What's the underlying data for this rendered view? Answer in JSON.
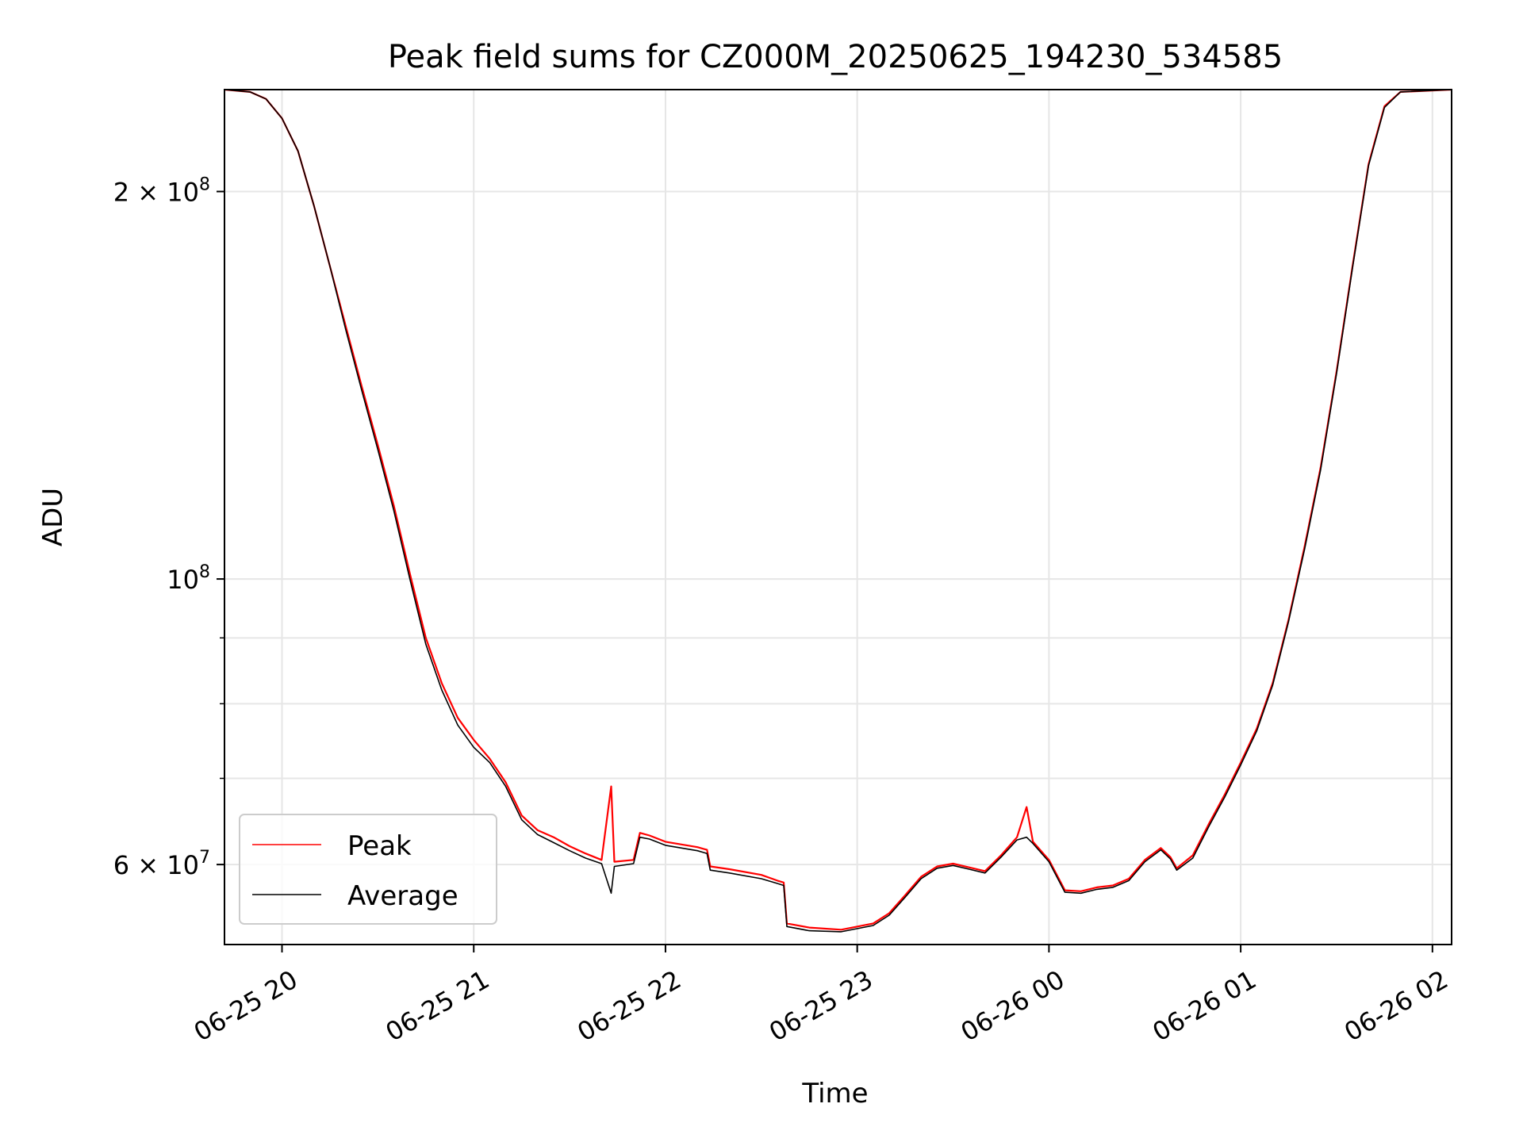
{
  "chart_data": {
    "type": "line",
    "title": "Peak field sums for CZ000M_20250625_194230_534585",
    "xlabel": "Time",
    "ylabel": "ADU",
    "y_scale": "log",
    "xlim": [
      "06-25 19:42",
      "06-26 02:06"
    ],
    "ylim": [
      52000000,
      240000000
    ],
    "grid": true,
    "legend_position": "lower-left",
    "x_ticks": [
      {
        "t": "06-25 20:00",
        "label": "06-25 20"
      },
      {
        "t": "06-25 21:00",
        "label": "06-25 21"
      },
      {
        "t": "06-25 22:00",
        "label": "06-25 22"
      },
      {
        "t": "06-25 23:00",
        "label": "06-25 23"
      },
      {
        "t": "06-26 00:00",
        "label": "06-26 00"
      },
      {
        "t": "06-26 01:00",
        "label": "06-26 01"
      },
      {
        "t": "06-26 02:00",
        "label": "06-26 02"
      }
    ],
    "y_major_ticks": [
      {
        "value": 60000000,
        "mantissa": "6",
        "exponent": "7"
      },
      {
        "value": 100000000,
        "mantissa": "",
        "exponent": "8"
      },
      {
        "value": 200000000,
        "mantissa": "2",
        "exponent": "8"
      }
    ],
    "y_minor_ticks": [
      70000000,
      80000000,
      90000000
    ],
    "series": [
      {
        "name": "Peak",
        "color": "#ff0000",
        "points": [
          [
            "06-25 19:42",
            240000000
          ],
          [
            "06-25 19:50",
            239000000
          ],
          [
            "06-25 19:55",
            236000000
          ],
          [
            "06-25 20:00",
            228000000
          ],
          [
            "06-25 20:05",
            215000000
          ],
          [
            "06-25 20:10",
            195000000
          ],
          [
            "06-25 20:15",
            175000000
          ],
          [
            "06-25 20:20",
            157000000
          ],
          [
            "06-25 20:25",
            141000000
          ],
          [
            "06-25 20:30",
            127000000
          ],
          [
            "06-25 20:35",
            114000000
          ],
          [
            "06-25 20:40",
            101000000
          ],
          [
            "06-25 20:45",
            90000000
          ],
          [
            "06-25 20:50",
            83000000
          ],
          [
            "06-25 20:55",
            78000000
          ],
          [
            "06-25 21:00",
            75000000
          ],
          [
            "06-25 21:05",
            72500000
          ],
          [
            "06-25 21:10",
            69500000
          ],
          [
            "06-25 21:15",
            65500000
          ],
          [
            "06-25 21:20",
            63800000
          ],
          [
            "06-25 21:25",
            63000000
          ],
          [
            "06-25 21:30",
            62000000
          ],
          [
            "06-25 21:35",
            61200000
          ],
          [
            "06-25 21:40",
            60500000
          ],
          [
            "06-25 21:43",
            69000000
          ],
          [
            "06-25 21:44",
            60300000
          ],
          [
            "06-25 21:50",
            60500000
          ],
          [
            "06-25 21:52",
            63500000
          ],
          [
            "06-25 21:55",
            63200000
          ],
          [
            "06-25 22:00",
            62500000
          ],
          [
            "06-25 22:05",
            62200000
          ],
          [
            "06-25 22:10",
            61900000
          ],
          [
            "06-25 22:13",
            61600000
          ],
          [
            "06-25 22:14",
            59800000
          ],
          [
            "06-25 22:20",
            59500000
          ],
          [
            "06-25 22:30",
            58900000
          ],
          [
            "06-25 22:35",
            58300000
          ],
          [
            "06-25 22:37",
            58100000
          ],
          [
            "06-25 22:38",
            54000000
          ],
          [
            "06-25 22:45",
            53600000
          ],
          [
            "06-25 22:55",
            53400000
          ],
          [
            "06-25 23:05",
            54000000
          ],
          [
            "06-25 23:10",
            55000000
          ],
          [
            "06-25 23:15",
            56800000
          ],
          [
            "06-25 23:20",
            58700000
          ],
          [
            "06-25 23:25",
            59800000
          ],
          [
            "06-25 23:30",
            60100000
          ],
          [
            "06-25 23:35",
            59700000
          ],
          [
            "06-25 23:40",
            59300000
          ],
          [
            "06-25 23:45",
            61000000
          ],
          [
            "06-25 23:50",
            63000000
          ],
          [
            "06-25 23:53",
            66500000
          ],
          [
            "06-25 23:55",
            62500000
          ],
          [
            "06-26 00:00",
            60500000
          ],
          [
            "06-26 00:05",
            57300000
          ],
          [
            "06-26 00:10",
            57200000
          ],
          [
            "06-26 00:15",
            57600000
          ],
          [
            "06-26 00:20",
            57800000
          ],
          [
            "06-26 00:25",
            58500000
          ],
          [
            "06-26 00:30",
            60500000
          ],
          [
            "06-26 00:35",
            61800000
          ],
          [
            "06-26 00:38",
            60800000
          ],
          [
            "06-26 00:40",
            59600000
          ],
          [
            "06-26 00:45",
            61000000
          ],
          [
            "06-26 00:50",
            64500000
          ],
          [
            "06-26 00:55",
            68000000
          ],
          [
            "06-26 01:00",
            72000000
          ],
          [
            "06-26 01:05",
            76500000
          ],
          [
            "06-26 01:10",
            83000000
          ],
          [
            "06-26 01:15",
            93000000
          ],
          [
            "06-26 01:20",
            106000000
          ],
          [
            "06-26 01:25",
            122000000
          ],
          [
            "06-26 01:30",
            145000000
          ],
          [
            "06-26 01:35",
            175000000
          ],
          [
            "06-26 01:40",
            210000000
          ],
          [
            "06-26 01:45",
            233000000
          ],
          [
            "06-26 01:50",
            239000000
          ],
          [
            "06-26 02:06",
            240000000
          ]
        ]
      },
      {
        "name": "Average",
        "color": "#000000",
        "points": [
          [
            "06-25 19:42",
            240000000
          ],
          [
            "06-25 19:50",
            239000000
          ],
          [
            "06-25 19:55",
            236000000
          ],
          [
            "06-25 20:00",
            228000000
          ],
          [
            "06-25 20:05",
            215000000
          ],
          [
            "06-25 20:10",
            195000000
          ],
          [
            "06-25 20:15",
            175000000
          ],
          [
            "06-25 20:20",
            156000000
          ],
          [
            "06-25 20:25",
            140000000
          ],
          [
            "06-25 20:30",
            126000000
          ],
          [
            "06-25 20:35",
            113000000
          ],
          [
            "06-25 20:40",
            100000000
          ],
          [
            "06-25 20:45",
            89000000
          ],
          [
            "06-25 20:50",
            82000000
          ],
          [
            "06-25 20:55",
            77000000
          ],
          [
            "06-25 21:00",
            74000000
          ],
          [
            "06-25 21:05",
            72000000
          ],
          [
            "06-25 21:10",
            69000000
          ],
          [
            "06-25 21:15",
            65000000
          ],
          [
            "06-25 21:20",
            63300000
          ],
          [
            "06-25 21:25",
            62400000
          ],
          [
            "06-25 21:30",
            61500000
          ],
          [
            "06-25 21:35",
            60700000
          ],
          [
            "06-25 21:40",
            60100000
          ],
          [
            "06-25 21:43",
            57000000
          ],
          [
            "06-25 21:44",
            59800000
          ],
          [
            "06-25 21:50",
            60100000
          ],
          [
            "06-25 21:52",
            63000000
          ],
          [
            "06-25 21:55",
            62800000
          ],
          [
            "06-25 22:00",
            62100000
          ],
          [
            "06-25 22:05",
            61800000
          ],
          [
            "06-25 22:10",
            61500000
          ],
          [
            "06-25 22:13",
            61200000
          ],
          [
            "06-25 22:14",
            59400000
          ],
          [
            "06-25 22:20",
            59100000
          ],
          [
            "06-25 22:30",
            58500000
          ],
          [
            "06-25 22:35",
            58000000
          ],
          [
            "06-25 22:37",
            57800000
          ],
          [
            "06-25 22:38",
            53700000
          ],
          [
            "06-25 22:45",
            53300000
          ],
          [
            "06-25 22:55",
            53200000
          ],
          [
            "06-25 23:05",
            53800000
          ],
          [
            "06-25 23:10",
            54800000
          ],
          [
            "06-25 23:15",
            56600000
          ],
          [
            "06-25 23:20",
            58500000
          ],
          [
            "06-25 23:25",
            59600000
          ],
          [
            "06-25 23:30",
            59900000
          ],
          [
            "06-25 23:35",
            59500000
          ],
          [
            "06-25 23:40",
            59100000
          ],
          [
            "06-25 23:45",
            60800000
          ],
          [
            "06-25 23:50",
            62700000
          ],
          [
            "06-25 23:53",
            63000000
          ],
          [
            "06-25 23:55",
            62300000
          ],
          [
            "06-26 00:00",
            60300000
          ],
          [
            "06-26 00:05",
            57100000
          ],
          [
            "06-26 00:10",
            57000000
          ],
          [
            "06-26 00:15",
            57400000
          ],
          [
            "06-26 00:20",
            57600000
          ],
          [
            "06-26 00:25",
            58300000
          ],
          [
            "06-26 00:30",
            60300000
          ],
          [
            "06-26 00:35",
            61600000
          ],
          [
            "06-26 00:38",
            60600000
          ],
          [
            "06-26 00:40",
            59400000
          ],
          [
            "06-26 00:45",
            60700000
          ],
          [
            "06-26 00:50",
            64200000
          ],
          [
            "06-26 00:55",
            67700000
          ],
          [
            "06-26 01:00",
            71700000
          ],
          [
            "06-26 01:05",
            76200000
          ],
          [
            "06-26 01:10",
            82700000
          ],
          [
            "06-26 01:15",
            92700000
          ],
          [
            "06-26 01:20",
            105500000
          ],
          [
            "06-26 01:25",
            121500000
          ],
          [
            "06-26 01:30",
            144500000
          ],
          [
            "06-26 01:35",
            174500000
          ],
          [
            "06-26 01:40",
            209500000
          ],
          [
            "06-26 01:45",
            232500000
          ],
          [
            "06-26 01:50",
            239000000
          ],
          [
            "06-26 02:06",
            240000000
          ]
        ]
      }
    ]
  }
}
